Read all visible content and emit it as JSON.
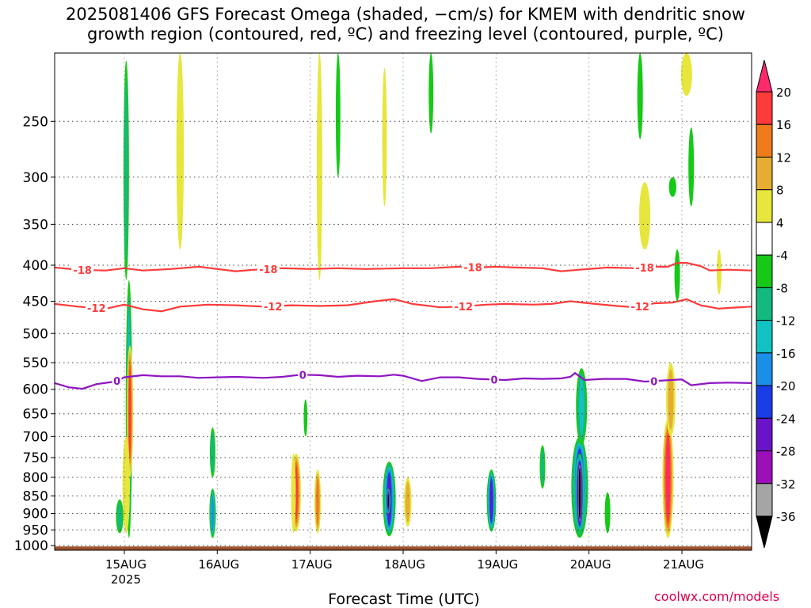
{
  "title_line1": "2025081406 GFS Forecast Omega (shaded, −cm/s) for KMEM with dendritic snow",
  "title_line2": "growth region (contoured, red, ºC) and freezing level (contoured, purple, ºC)",
  "xlabel": "Forecast Time (UTC)",
  "credit": "coolwx.com/models",
  "chart_data": {
    "type": "heatmap",
    "y_axis": {
      "levels": [
        250,
        300,
        350,
        400,
        450,
        500,
        550,
        600,
        650,
        700,
        750,
        800,
        850,
        900,
        950,
        1000
      ],
      "scale": "log",
      "range": [
        1015,
        200
      ],
      "grid": true
    },
    "x_axis": {
      "tick_labels": [
        "15AUG",
        "16AUG",
        "17AUG",
        "18AUG",
        "19AUG",
        "20AUG",
        "21AUG"
      ],
      "year_label": "2025",
      "range_days": [
        -0.75,
        6.75
      ],
      "grid": true
    },
    "colorbar": {
      "levels": [
        20,
        16,
        12,
        8,
        4,
        -4,
        -8,
        -12,
        -16,
        -20,
        -24,
        -28,
        -32,
        -36
      ],
      "colors": [
        "#ff2a6d",
        "#ff3a3a",
        "#ee7c1c",
        "#e6ad33",
        "#e6e63c",
        "#ffffff",
        "#17c917",
        "#13b97f",
        "#12c1c1",
        "#1a8fe8",
        "#1a3ce6",
        "#6a14c9",
        "#9c0fb9",
        "#a5a5a5",
        "#000000"
      ]
    },
    "contour_colors": {
      "dendritic": "#ff3a3a",
      "freezing": "#8e13c3"
    },
    "contours": [
      {
        "name": "-18",
        "label": "-18",
        "label_x": [
          -0.45,
          1.55,
          3.75,
          5.6
        ],
        "points": [
          [
            -0.75,
            403
          ],
          [
            -0.5,
            406
          ],
          [
            -0.2,
            407
          ],
          [
            0,
            404
          ],
          [
            0.2,
            407
          ],
          [
            0.5,
            405
          ],
          [
            0.8,
            402
          ],
          [
            1,
            405
          ],
          [
            1.2,
            408
          ],
          [
            1.4,
            406
          ],
          [
            1.7,
            404
          ],
          [
            2,
            405
          ],
          [
            2.3,
            404
          ],
          [
            2.6,
            405
          ],
          [
            3,
            404
          ],
          [
            3.3,
            404
          ],
          [
            3.6,
            402
          ],
          [
            3.8,
            403
          ],
          [
            4,
            402
          ],
          [
            4.2,
            403
          ],
          [
            4.5,
            404
          ],
          [
            4.7,
            408
          ],
          [
            4.9,
            406
          ],
          [
            5.2,
            403
          ],
          [
            5.5,
            404
          ],
          [
            5.7,
            402
          ],
          [
            5.85,
            402
          ],
          [
            5.95,
            397
          ],
          [
            6.05,
            397
          ],
          [
            6.2,
            401
          ],
          [
            6.3,
            407
          ],
          [
            6.5,
            406
          ],
          [
            6.75,
            407
          ]
        ]
      },
      {
        "name": "-12",
        "label": "-12",
        "label_x": [
          -0.3,
          1.6,
          3.65,
          5.55
        ],
        "points": [
          [
            -0.75,
            454
          ],
          [
            -0.5,
            458
          ],
          [
            -0.2,
            461
          ],
          [
            0,
            455
          ],
          [
            0.2,
            462
          ],
          [
            0.4,
            465
          ],
          [
            0.6,
            458
          ],
          [
            0.9,
            455
          ],
          [
            1.2,
            456
          ],
          [
            1.5,
            458
          ],
          [
            1.8,
            456
          ],
          [
            2.1,
            457
          ],
          [
            2.4,
            456
          ],
          [
            2.7,
            450
          ],
          [
            2.9,
            447
          ],
          [
            3.1,
            454
          ],
          [
            3.4,
            459
          ],
          [
            3.6,
            458
          ],
          [
            3.9,
            455
          ],
          [
            4.1,
            454
          ],
          [
            4.4,
            455
          ],
          [
            4.6,
            454
          ],
          [
            4.8,
            450
          ],
          [
            5,
            453
          ],
          [
            5.3,
            457
          ],
          [
            5.5,
            459
          ],
          [
            5.7,
            453
          ],
          [
            5.9,
            452
          ],
          [
            6.05,
            447
          ],
          [
            6.2,
            456
          ],
          [
            6.4,
            461
          ],
          [
            6.5,
            460
          ],
          [
            6.75,
            458
          ]
        ]
      },
      {
        "name": "0",
        "label": "0",
        "label_x": [
          -0.08,
          1.92,
          3.98,
          5.7
        ],
        "points": [
          [
            -0.75,
            588
          ],
          [
            -0.6,
            596
          ],
          [
            -0.45,
            599
          ],
          [
            -0.3,
            590
          ],
          [
            -0.1,
            585
          ],
          [
            0,
            577
          ],
          [
            0.2,
            573
          ],
          [
            0.4,
            575
          ],
          [
            0.6,
            575
          ],
          [
            0.8,
            578
          ],
          [
            1,
            577
          ],
          [
            1.2,
            576
          ],
          [
            1.5,
            578
          ],
          [
            1.7,
            576
          ],
          [
            1.9,
            572
          ],
          [
            2.1,
            573
          ],
          [
            2.3,
            576
          ],
          [
            2.5,
            574
          ],
          [
            2.75,
            575
          ],
          [
            2.9,
            572
          ],
          [
            3,
            574
          ],
          [
            3.2,
            584
          ],
          [
            3.4,
            577
          ],
          [
            3.6,
            577
          ],
          [
            3.8,
            580
          ],
          [
            4.1,
            582
          ],
          [
            4.3,
            579
          ],
          [
            4.5,
            580
          ],
          [
            4.7,
            579
          ],
          [
            4.8,
            576
          ],
          [
            4.85,
            569
          ],
          [
            4.95,
            582
          ],
          [
            5.15,
            580
          ],
          [
            5.4,
            580
          ],
          [
            5.6,
            585
          ],
          [
            5.8,
            583
          ],
          [
            6,
            581
          ],
          [
            6.1,
            592
          ],
          [
            6.3,
            588
          ],
          [
            6.5,
            587
          ],
          [
            6.75,
            588
          ]
        ]
      }
    ],
    "omega_features": [
      {
        "t": 0.05,
        "p0": 420,
        "p1": 975,
        "w": 0.035,
        "v": -14
      },
      {
        "t": 0.02,
        "p0": 205,
        "p1": 420,
        "w": 0.03,
        "v": -10
      },
      {
        "t": 0.06,
        "p0": 520,
        "p1": 800,
        "w": 0.035,
        "v": 16
      },
      {
        "t": 0.02,
        "p0": 700,
        "p1": 960,
        "w": 0.04,
        "v": 6
      },
      {
        "t": -0.05,
        "p0": 860,
        "p1": 960,
        "w": 0.04,
        "v": -10
      },
      {
        "t": 0.95,
        "p0": 830,
        "p1": 975,
        "w": 0.035,
        "v": -18
      },
      {
        "t": 0.95,
        "p0": 680,
        "p1": 800,
        "w": 0.03,
        "v": -8
      },
      {
        "t": 1.85,
        "p0": 740,
        "p1": 955,
        "w": 0.05,
        "v": 16
      },
      {
        "t": 2.08,
        "p0": 780,
        "p1": 960,
        "w": 0.035,
        "v": 14
      },
      {
        "t": 1.82,
        "p0": 740,
        "p1": 960,
        "w": 0.025,
        "v": 6
      },
      {
        "t": 2.85,
        "p0": 760,
        "p1": 970,
        "w": 0.07,
        "v": -24
      },
      {
        "t": 2.84,
        "p0": 830,
        "p1": 900,
        "w": 0.025,
        "v": -40
      },
      {
        "t": 3.05,
        "p0": 800,
        "p1": 940,
        "w": 0.04,
        "v": 8
      },
      {
        "t": 3.95,
        "p0": 780,
        "p1": 955,
        "w": 0.05,
        "v": -24
      },
      {
        "t": 4.9,
        "p0": 700,
        "p1": 975,
        "w": 0.09,
        "v": -30
      },
      {
        "t": 4.9,
        "p0": 740,
        "p1": 960,
        "w": 0.05,
        "v": -40
      },
      {
        "t": 4.92,
        "p0": 560,
        "p1": 720,
        "w": 0.06,
        "v": -12
      },
      {
        "t": 5.2,
        "p0": 840,
        "p1": 960,
        "w": 0.03,
        "v": -6
      },
      {
        "t": 5.85,
        "p0": 660,
        "p1": 975,
        "w": 0.06,
        "v": 20
      },
      {
        "t": 5.88,
        "p0": 550,
        "p1": 700,
        "w": 0.05,
        "v": 10
      },
      {
        "t": 6.05,
        "p0": 200,
        "p1": 230,
        "w": 0.06,
        "v": 6
      },
      {
        "t": 5.6,
        "p0": 305,
        "p1": 380,
        "w": 0.06,
        "v": 5
      },
      {
        "t": 5.55,
        "p0": 200,
        "p1": 265,
        "w": 0.03,
        "v": -6
      },
      {
        "t": 5.9,
        "p0": 300,
        "p1": 320,
        "w": 0.04,
        "v": -6
      },
      {
        "t": 6.1,
        "p0": 255,
        "p1": 330,
        "w": 0.03,
        "v": -6
      },
      {
        "t": 0.6,
        "p0": 200,
        "p1": 380,
        "w": 0.04,
        "v": 6
      },
      {
        "t": 2.1,
        "p0": 200,
        "p1": 420,
        "w": 0.03,
        "v": 6
      },
      {
        "t": 2.3,
        "p0": 200,
        "p1": 300,
        "w": 0.025,
        "v": -6
      },
      {
        "t": 3.3,
        "p0": 200,
        "p1": 260,
        "w": 0.025,
        "v": -7
      },
      {
        "t": 2.8,
        "p0": 210,
        "p1": 330,
        "w": 0.025,
        "v": 5
      },
      {
        "t": 1.95,
        "p0": 620,
        "p1": 700,
        "w": 0.02,
        "v": -6
      },
      {
        "t": 5.95,
        "p0": 380,
        "p1": 450,
        "w": 0.03,
        "v": -6
      },
      {
        "t": 6.4,
        "p0": 380,
        "p1": 440,
        "w": 0.025,
        "v": 5
      },
      {
        "t": 4.5,
        "p0": 720,
        "p1": 830,
        "w": 0.03,
        "v": -8
      }
    ]
  }
}
